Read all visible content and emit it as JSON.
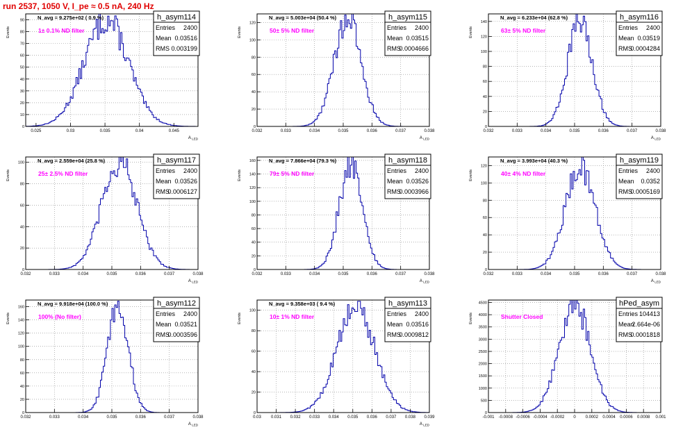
{
  "title": "run 2537,  1050 V, I_pe ≈ 0.5 nA, 240 Hz",
  "colors": {
    "hist": "#0000aa",
    "label": "#ff00ff",
    "title": "#e00000",
    "grid": "#888888"
  },
  "stat_labels": {
    "entries": "Entries",
    "mean": "Mean",
    "rms": "RMS"
  },
  "chart_data": [
    {
      "type": "histogram",
      "name": "h_asym114",
      "entries": "2400",
      "mean": "0.03516",
      "rms": "0.003199",
      "navg": "N_avg = 9.275e+02 ( 0.9 %)",
      "filter": "1± 0.1% ND filter",
      "xlabel": "A_LED",
      "ylabel": "Events",
      "grid": true,
      "legend": "top-right",
      "xlim": [
        0.0235,
        0.0485
      ],
      "ylim": [
        0,
        95
      ],
      "xticks": [
        0.025,
        0.03,
        0.035,
        0.04,
        0.045
      ],
      "xtick_labels": [
        "0.025",
        "0.03",
        "0.035",
        "0.04",
        "0.045"
      ],
      "yticks": [
        0,
        10,
        20,
        30,
        40,
        50,
        60,
        70,
        80,
        90
      ],
      "ytick_labels": [
        "0",
        "10",
        "20",
        "30",
        "40",
        "50",
        "60",
        "70",
        "80",
        "90"
      ],
      "peak": 90,
      "center": 0.0352,
      "sigma": 0.0032
    },
    {
      "type": "histogram",
      "name": "h_asym115",
      "entries": "2400",
      "mean": "0.03515",
      "rms": "0.0004666",
      "navg": "N_avg = 5.003e+04 (50.4 %)",
      "filter": "50± 5% ND filter",
      "xlabel": "A_LED",
      "ylabel": "Events",
      "grid": true,
      "legend": "top-right",
      "xlim": [
        0.032,
        0.038
      ],
      "ylim": [
        0,
        130
      ],
      "xticks": [
        0.032,
        0.033,
        0.034,
        0.035,
        0.036,
        0.037,
        0.038
      ],
      "xtick_labels": [
        "0.032",
        "0.033",
        "0.034",
        "0.035",
        "0.036",
        "0.037",
        "0.038"
      ],
      "yticks": [
        0,
        20,
        40,
        60,
        80,
        100,
        120
      ],
      "ytick_labels": [
        "0",
        "20",
        "40",
        "60",
        "80",
        "100",
        "120"
      ],
      "peak": 125,
      "center": 0.03515,
      "sigma": 0.00047
    },
    {
      "type": "histogram",
      "name": "h_asym116",
      "entries": "2400",
      "mean": "0.03519",
      "rms": "0.0004284",
      "navg": "N_avg = 6.233e+04 (62.8 %)",
      "filter": "63± 5% ND filter",
      "xlabel": "A_LED",
      "ylabel": "Events",
      "grid": true,
      "legend": "top-right",
      "xlim": [
        0.032,
        0.038
      ],
      "ylim": [
        0,
        150
      ],
      "xticks": [
        0.032,
        0.033,
        0.034,
        0.035,
        0.036,
        0.037,
        0.038
      ],
      "xtick_labels": [
        "0.032",
        "0.033",
        "0.034",
        "0.035",
        "0.036",
        "0.037",
        "0.038"
      ],
      "yticks": [
        0,
        20,
        40,
        60,
        80,
        100,
        120,
        140
      ],
      "ytick_labels": [
        "0",
        "20",
        "40",
        "60",
        "80",
        "100",
        "120",
        "140"
      ],
      "peak": 140,
      "center": 0.03519,
      "sigma": 0.00043
    },
    {
      "type": "histogram",
      "name": "h_asym117",
      "entries": "2400",
      "mean": "0.03526",
      "rms": "0.0006127",
      "navg": "N_avg = 2.559e+04 (25.8 %)",
      "filter": "25± 2.5% ND filter",
      "xlabel": "A_LED",
      "ylabel": "Events",
      "grid": true,
      "legend": "top-right",
      "xlim": [
        0.032,
        0.038
      ],
      "ylim": [
        0,
        105
      ],
      "xticks": [
        0.032,
        0.033,
        0.034,
        0.035,
        0.036,
        0.037,
        0.038
      ],
      "xtick_labels": [
        "0.032",
        "0.033",
        "0.034",
        "0.035",
        "0.036",
        "0.037",
        "0.038"
      ],
      "yticks": [
        0,
        20,
        40,
        60,
        80,
        100
      ],
      "ytick_labels": [
        "0",
        "20",
        "40",
        "60",
        "80",
        "100"
      ],
      "peak": 100,
      "center": 0.03526,
      "sigma": 0.00061
    },
    {
      "type": "histogram",
      "name": "h_asym118",
      "entries": "2400",
      "mean": "0.03526",
      "rms": "0.0003966",
      "navg": "N_avg = 7.866e+04 (79.3 %)",
      "filter": "79± 5% ND filter",
      "xlabel": "A_LED",
      "ylabel": "Events",
      "grid": true,
      "legend": "top-right",
      "xlim": [
        0.032,
        0.038
      ],
      "ylim": [
        0,
        165
      ],
      "xticks": [
        0.032,
        0.033,
        0.034,
        0.035,
        0.036,
        0.037,
        0.038
      ],
      "xtick_labels": [
        "0.032",
        "0.033",
        "0.034",
        "0.035",
        "0.036",
        "0.037",
        "0.038"
      ],
      "yticks": [
        0,
        20,
        40,
        60,
        80,
        100,
        120,
        140,
        160
      ],
      "ytick_labels": [
        "0",
        "20",
        "40",
        "60",
        "80",
        "100",
        "120",
        "140",
        "160"
      ],
      "peak": 155,
      "center": 0.03526,
      "sigma": 0.0004
    },
    {
      "type": "histogram",
      "name": "h_asym119",
      "entries": "2400",
      "mean": "0.0352",
      "rms": "0.0005169",
      "navg": "N_avg = 3.993e+04 (40.3 %)",
      "filter": "40± 4% ND filter",
      "xlabel": "A_LED",
      "ylabel": "Events",
      "grid": true,
      "legend": "top-right",
      "xlim": [
        0.032,
        0.038
      ],
      "ylim": [
        0,
        130
      ],
      "xticks": [
        0.032,
        0.033,
        0.034,
        0.035,
        0.036,
        0.037,
        0.038
      ],
      "xtick_labels": [
        "0.032",
        "0.033",
        "0.034",
        "0.035",
        "0.036",
        "0.037",
        "0.038"
      ],
      "yticks": [
        0,
        20,
        40,
        60,
        80,
        100,
        120
      ],
      "ytick_labels": [
        "0",
        "20",
        "40",
        "60",
        "80",
        "100",
        "120"
      ],
      "peak": 120,
      "center": 0.0352,
      "sigma": 0.00052
    },
    {
      "type": "histogram",
      "name": "h_asym112",
      "entries": "2400",
      "mean": "0.03521",
      "rms": "0.0003596",
      "navg": "N_avg = 9.918e+04 (100.0 %)",
      "filter": "100% (No filter)",
      "xlabel": "A_LED",
      "ylabel": "Events",
      "grid": true,
      "legend": "top-right",
      "xlim": [
        0.032,
        0.038
      ],
      "ylim": [
        0,
        170
      ],
      "xticks": [
        0.032,
        0.033,
        0.034,
        0.035,
        0.036,
        0.037,
        0.038
      ],
      "xtick_labels": [
        "0.032",
        "0.033",
        "0.034",
        "0.035",
        "0.036",
        "0.037",
        "0.038"
      ],
      "yticks": [
        0,
        20,
        40,
        60,
        80,
        100,
        120,
        140,
        160
      ],
      "ytick_labels": [
        "0",
        "20",
        "40",
        "60",
        "80",
        "100",
        "120",
        "140",
        "160"
      ],
      "peak": 165,
      "center": 0.03521,
      "sigma": 0.00036
    },
    {
      "type": "histogram",
      "name": "h_asym113",
      "entries": "2400",
      "mean": "0.03516",
      "rms": "0.0009812",
      "navg": "N_avg = 9.358e+03 ( 9.4 %)",
      "filter": "10± 1% ND filter",
      "xlabel": "A_LED",
      "ylabel": "Events",
      "grid": true,
      "legend": "top-right",
      "xlim": [
        0.03,
        0.039
      ],
      "ylim": [
        0,
        110
      ],
      "xticks": [
        0.03,
        0.031,
        0.032,
        0.033,
        0.034,
        0.035,
        0.036,
        0.037,
        0.038,
        0.039
      ],
      "xtick_labels": [
        "0.03",
        "0.031",
        "0.032",
        "0.033",
        "0.034",
        "0.035",
        "0.036",
        "0.037",
        "0.038",
        "0.039"
      ],
      "yticks": [
        0,
        20,
        40,
        60,
        80,
        100
      ],
      "ytick_labels": [
        "0",
        "20",
        "40",
        "60",
        "80",
        "100"
      ],
      "peak": 104,
      "center": 0.03516,
      "sigma": 0.00098
    },
    {
      "type": "histogram",
      "name": "hPed_asym",
      "entries": "104413",
      "mean": "2.664e-06",
      "rms": "0.0001818",
      "navg": "",
      "filter": "Shutter Closed",
      "xlabel": "",
      "ylabel": "Events",
      "grid": true,
      "legend": "top-right",
      "xlim": [
        -0.001,
        0.001
      ],
      "ylim": [
        0,
        4600
      ],
      "xticks": [
        -0.001,
        -0.0008,
        -0.0006,
        -0.0004,
        -0.0002,
        0,
        0.0002,
        0.0004,
        0.0006,
        0.0008,
        0.001
      ],
      "xtick_labels": [
        "-0.001",
        "-0.0008",
        "-0.0006",
        "-0.0004",
        "-0.0002",
        "0",
        "0.0002",
        "0.0004",
        "0.0006",
        "0.0008",
        "0.001"
      ],
      "yticks": [
        0,
        500,
        1000,
        1500,
        2000,
        2500,
        3000,
        3500,
        4000,
        4500
      ],
      "ytick_labels": [
        "0",
        "500",
        "1000",
        "1500",
        "2000",
        "2500",
        "3000",
        "3500",
        "4000",
        "4500"
      ],
      "peak": 4450,
      "center": 0.0,
      "sigma": 0.00018
    }
  ]
}
